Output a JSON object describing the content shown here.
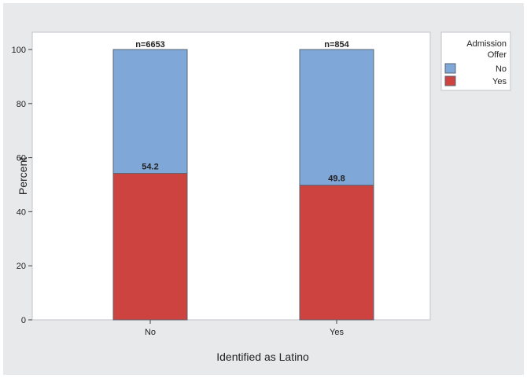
{
  "chart_data": {
    "type": "bar",
    "stacked": true,
    "xlabel": "Identified as Latino",
    "ylabel": "Percent",
    "categories": [
      "No",
      "Yes"
    ],
    "category_counts": [
      "n=6653",
      "n=854"
    ],
    "ylim": [
      0,
      100
    ],
    "yticks": [
      0,
      20,
      40,
      60,
      80,
      100
    ],
    "grid": false,
    "legend": {
      "title_lines": [
        "Admission",
        "Offer"
      ],
      "placement": "right"
    },
    "series": [
      {
        "name": "Yes",
        "values": [
          54.2,
          49.8
        ],
        "color": "#cc4340"
      },
      {
        "name": "No",
        "values": [
          45.8,
          50.2
        ],
        "color": "#7fa7d8"
      }
    ],
    "data_labels": [
      "54.2",
      "49.8"
    ]
  },
  "colors": {
    "plot_background": "#ffffff",
    "frame_background": "#e8e9ea",
    "bar_edge": "#5a6470"
  }
}
